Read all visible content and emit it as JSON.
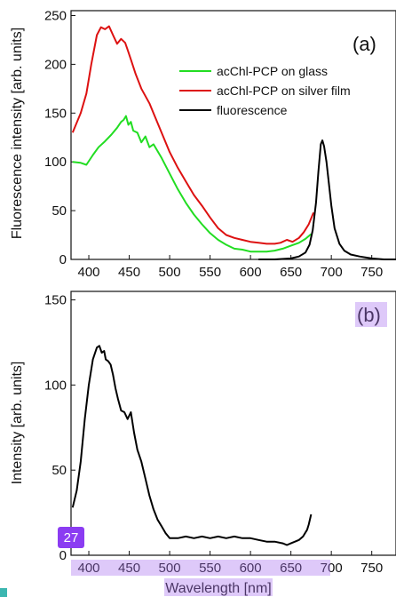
{
  "chart_data": [
    {
      "type": "line",
      "panel_label": "(a)",
      "ylabel": "Fluorescence intensity [arb. units]",
      "xlim": [
        378,
        780
      ],
      "ylim": [
        0,
        255
      ],
      "xticks": [
        400,
        450,
        500,
        550,
        600,
        650,
        700,
        750
      ],
      "yticks": [
        0,
        50,
        100,
        150,
        200,
        250
      ],
      "legend_position": "top-right",
      "series": [
        {
          "name": "acChl-PCP on glass",
          "color": "#22dd22",
          "x": [
            380,
            390,
            397,
            405,
            412,
            420,
            428,
            435,
            440,
            443,
            446,
            449,
            452,
            455,
            460,
            465,
            470,
            475,
            480,
            490,
            500,
            510,
            520,
            530,
            540,
            550,
            560,
            570,
            580,
            590,
            600,
            610,
            620,
            630,
            640,
            650,
            660,
            668,
            675
          ],
          "y": [
            100,
            99,
            97,
            107,
            115,
            121,
            128,
            135,
            141,
            143,
            147,
            138,
            141,
            132,
            130,
            120,
            126,
            115,
            118,
            104,
            88,
            72,
            58,
            46,
            36,
            27,
            20,
            15,
            11,
            10,
            8,
            8,
            8,
            9,
            11,
            14,
            17,
            21,
            26
          ]
        },
        {
          "name": "acChl-PCP on silver film",
          "color": "#dd1111",
          "x": [
            380,
            390,
            397,
            403,
            410,
            415,
            420,
            425,
            430,
            435,
            440,
            445,
            448,
            452,
            458,
            465,
            475,
            485,
            500,
            510,
            520,
            530,
            540,
            550,
            560,
            570,
            580,
            590,
            600,
            610,
            620,
            630,
            637,
            645,
            652,
            660,
            666,
            672,
            678
          ],
          "y": [
            130,
            150,
            170,
            200,
            230,
            238,
            236,
            239,
            230,
            221,
            226,
            222,
            215,
            205,
            190,
            175,
            160,
            140,
            110,
            94,
            80,
            66,
            55,
            43,
            32,
            25,
            22,
            20,
            18,
            17,
            16,
            16,
            17,
            20,
            18,
            22,
            28,
            36,
            48
          ]
        },
        {
          "name": "fluorescence",
          "color": "#000000",
          "x": [
            610,
            630,
            650,
            660,
            668,
            673,
            677,
            681,
            684,
            687,
            689,
            691,
            694,
            697,
            700,
            704,
            710,
            716,
            724,
            735,
            750,
            765,
            780
          ],
          "y": [
            0,
            0,
            1,
            3,
            7,
            15,
            30,
            58,
            90,
            118,
            122,
            116,
            100,
            78,
            55,
            32,
            16,
            9,
            5,
            3,
            1,
            0,
            0
          ]
        }
      ]
    },
    {
      "type": "line",
      "panel_label": "(b)",
      "xlabel": "Wavelength [nm]",
      "ylabel": "Intensity [arb. units]",
      "xlim": [
        378,
        780
      ],
      "ylim": [
        0,
        155
      ],
      "xticks": [
        400,
        450,
        500,
        550,
        600,
        650,
        700,
        750
      ],
      "yticks": [
        0,
        50,
        100,
        150
      ],
      "series": [
        {
          "color": "#000000",
          "x": [
            380,
            385,
            390,
            395,
            400,
            405,
            410,
            413,
            416,
            419,
            421,
            424,
            427,
            430,
            433,
            436,
            440,
            444,
            448,
            452,
            456,
            460,
            465,
            470,
            475,
            480,
            485,
            490,
            495,
            500,
            510,
            520,
            530,
            540,
            550,
            560,
            570,
            580,
            590,
            600,
            610,
            620,
            630,
            640,
            645,
            650,
            655,
            660,
            665,
            670,
            672,
            675
          ],
          "y": [
            28,
            38,
            55,
            80,
            100,
            115,
            122,
            123,
            119,
            120,
            115,
            114,
            112,
            106,
            98,
            92,
            85,
            84,
            80,
            84,
            72,
            62,
            55,
            45,
            35,
            27,
            21,
            17,
            13,
            10,
            10,
            11,
            10,
            11,
            10,
            11,
            10,
            11,
            10,
            10,
            9,
            8,
            8,
            7,
            6,
            7,
            8,
            9,
            11,
            15,
            18,
            24
          ]
        }
      ]
    }
  ],
  "badge": {
    "text": "27"
  }
}
